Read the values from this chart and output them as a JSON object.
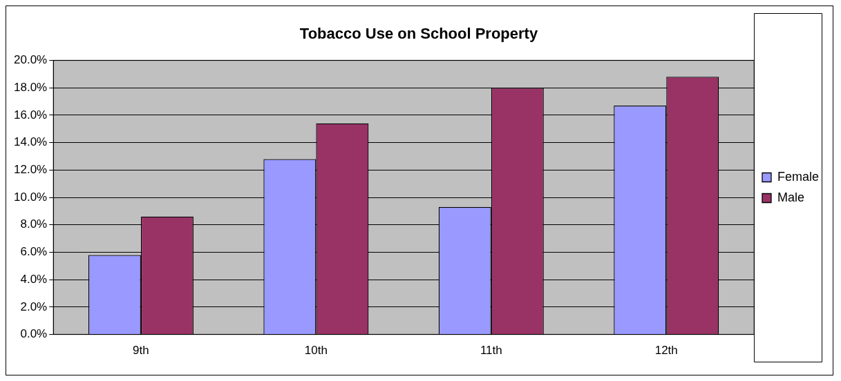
{
  "chart_data": {
    "type": "bar",
    "title": "Tobacco Use on School Property",
    "categories": [
      "9th",
      "10th",
      "11th",
      "12th"
    ],
    "series": [
      {
        "name": "Female",
        "color": "#9999ff",
        "values": [
          5.8,
          12.8,
          9.3,
          16.7
        ]
      },
      {
        "name": "Male",
        "color": "#993366",
        "values": [
          8.6,
          15.4,
          18.0,
          18.8
        ]
      }
    ],
    "ylim": [
      0,
      20
    ],
    "yticks": [
      {
        "value": 0,
        "label": "0.0%"
      },
      {
        "value": 2,
        "label": "2.0%"
      },
      {
        "value": 4,
        "label": "4.0%"
      },
      {
        "value": 6,
        "label": "6.0%"
      },
      {
        "value": 8,
        "label": "8.0%"
      },
      {
        "value": 10,
        "label": "10.0%"
      },
      {
        "value": 12,
        "label": "12.0%"
      },
      {
        "value": 14,
        "label": "14.0%"
      },
      {
        "value": 16,
        "label": "16.0%"
      },
      {
        "value": 18,
        "label": "18.0%"
      },
      {
        "value": 20,
        "label": "20.0%"
      }
    ],
    "grid": "y",
    "legend": "right"
  }
}
